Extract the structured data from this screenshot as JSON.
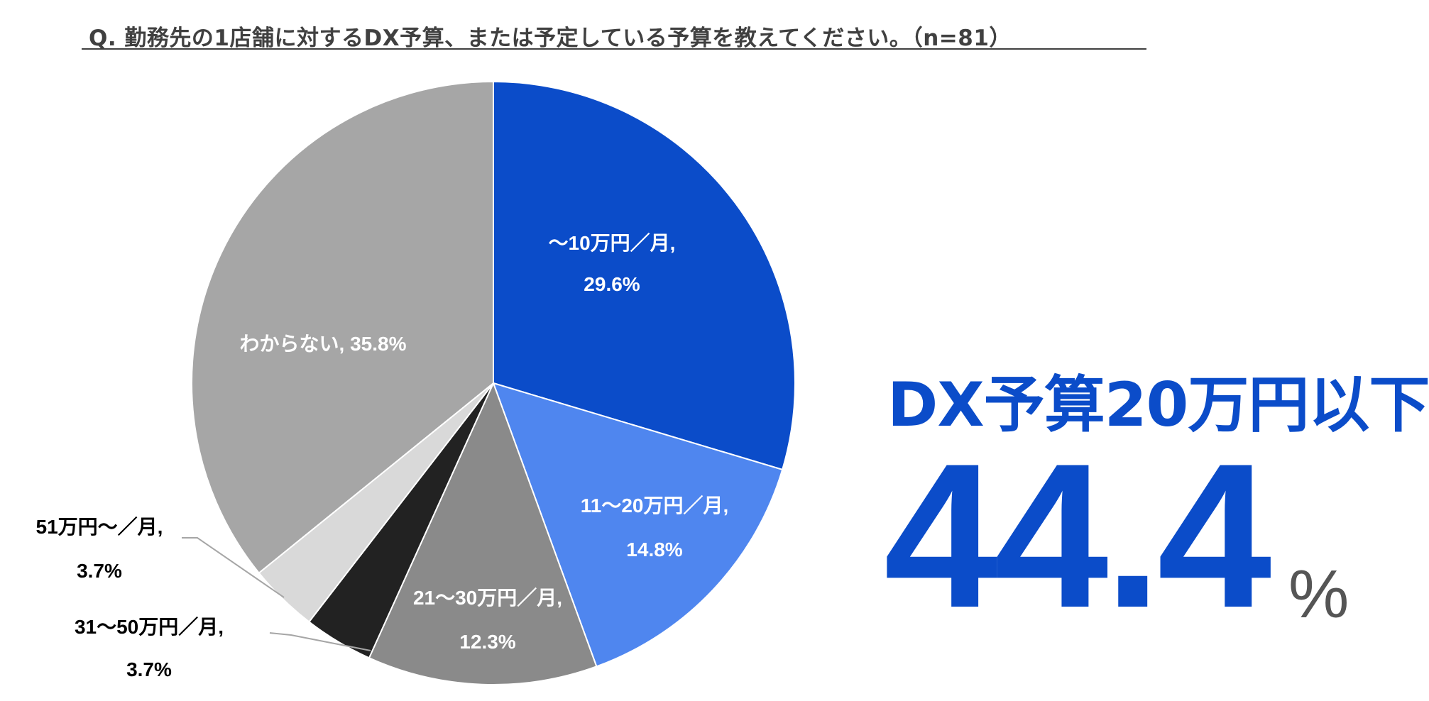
{
  "title": "Q. 勤務先の1店舗に対するDX予算、または予定している予算を教えてください。（n=81）",
  "headline": "DX予算20万円以下",
  "big_number": "44.4",
  "big_unit": "%",
  "colors": {
    "dark_blue": "#0b4cc9",
    "light_blue": "#4f86ef",
    "mid_gray": "#8a8a8a",
    "black": "#222222",
    "light_gray": "#d9d9d9",
    "gray": "#a6a6a6"
  },
  "chart_data": {
    "type": "pie",
    "start": "top, clockwise",
    "slices": [
      {
        "name": "〜10万円／月",
        "value": 29.6,
        "color": "#0b4cc9",
        "label_lines": [
          "〜10万円／月,",
          "29.6%"
        ],
        "label_color": "#ffffff"
      },
      {
        "name": "11〜20万円／月",
        "value": 14.8,
        "color": "#4f86ef",
        "label_lines": [
          "11〜20万円／月,",
          "14.8%"
        ],
        "label_color": "#ffffff"
      },
      {
        "name": "21〜30万円／月",
        "value": 12.3,
        "color": "#8a8a8a",
        "label_lines": [
          "21〜30万円／月,",
          "12.3%"
        ],
        "label_color": "#ffffff"
      },
      {
        "name": "31〜50万円／月",
        "value": 3.7,
        "color": "#222222",
        "label_lines": [
          "31〜50万円／月,",
          "3.7%"
        ],
        "label_color": "#000000"
      },
      {
        "name": "51万円〜／月",
        "value": 3.7,
        "color": "#d9d9d9",
        "label_lines": [
          "51万円〜／月,",
          "3.7%"
        ],
        "label_color": "#000000"
      },
      {
        "name": "わからない",
        "value": 35.8,
        "color": "#a6a6a6",
        "label_lines": [
          "わからない, 35.8%"
        ],
        "label_color": "#ffffff"
      }
    ]
  }
}
